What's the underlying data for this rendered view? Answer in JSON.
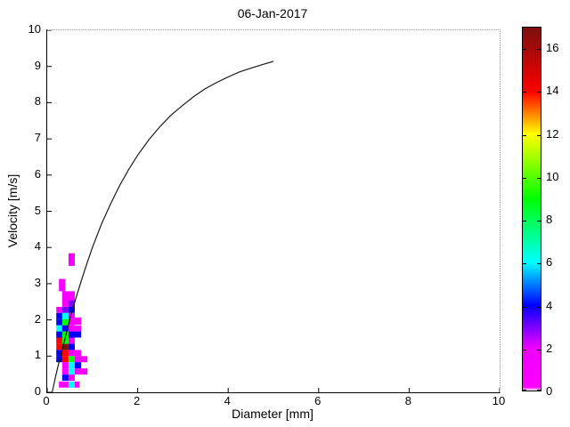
{
  "title": "06-Jan-2017",
  "chart_data": {
    "type": "heatmap",
    "title": "06-Jan-2017",
    "xlabel": "Diameter [mm]",
    "ylabel": "Velocity [m/s]",
    "xlim": [
      0,
      10
    ],
    "ylim": [
      0,
      10
    ],
    "xticks": [
      0,
      2,
      4,
      6,
      8,
      10
    ],
    "yticks": [
      0,
      1,
      2,
      3,
      4,
      5,
      6,
      7,
      8,
      9,
      10
    ],
    "grid": "dotted box edge on top and right only",
    "colorbar": {
      "min": 0,
      "max": 17,
      "ticks": [
        0,
        2,
        4,
        6,
        8,
        10,
        12,
        14,
        16
      ],
      "colormap_stops": [
        [
          0,
          "#ffffff"
        ],
        [
          0.15,
          "#ff00ff"
        ],
        [
          2,
          "#ee00ff"
        ],
        [
          4,
          "#0000ff"
        ],
        [
          6,
          "#00ffff"
        ],
        [
          9,
          "#00ff00"
        ],
        [
          12,
          "#ffff00"
        ],
        [
          14,
          "#ff0000"
        ],
        [
          17,
          "#7a0f0f"
        ]
      ]
    },
    "cell_size": {
      "w": 0.14,
      "h": 0.17
    },
    "cells_format": "[diameter_mm, velocity_ms, count, optional_w, optional_h]",
    "cells": [
      [
        0.47,
        3.49,
        1,
        0.14,
        0.35
      ],
      [
        0.26,
        2.79,
        1,
        0.14,
        0.34
      ],
      [
        0.33,
        2.46,
        1,
        0.28,
        0.33
      ],
      [
        0.33,
        2.36,
        1
      ],
      [
        0.47,
        2.36,
        3
      ],
      [
        0.2,
        2.19,
        1
      ],
      [
        0.33,
        2.19,
        3
      ],
      [
        0.47,
        2.19,
        4
      ],
      [
        0.2,
        2.02,
        4
      ],
      [
        0.33,
        2.02,
        6
      ],
      [
        0.47,
        2.02,
        1
      ],
      [
        0.61,
        1.87,
        1,
        0.14,
        0.2
      ],
      [
        0.2,
        1.85,
        4
      ],
      [
        0.33,
        1.85,
        9
      ],
      [
        0.47,
        1.85,
        1
      ],
      [
        0.2,
        1.68,
        6
      ],
      [
        0.33,
        1.68,
        4
      ],
      [
        0.47,
        1.68,
        1,
        0.28
      ],
      [
        0.2,
        1.51,
        4
      ],
      [
        0.33,
        1.51,
        9
      ],
      [
        0.47,
        1.51,
        4
      ],
      [
        0.61,
        1.51,
        4
      ],
      [
        0.2,
        1.34,
        14
      ],
      [
        0.33,
        1.34,
        9
      ],
      [
        0.47,
        1.34,
        1
      ],
      [
        0.2,
        1.17,
        14
      ],
      [
        0.33,
        1.17,
        17
      ],
      [
        0.47,
        1.17,
        4
      ],
      [
        0.2,
        1.0,
        4
      ],
      [
        0.33,
        1.0,
        14
      ],
      [
        0.47,
        1.0,
        1
      ],
      [
        0.61,
        1.0,
        1
      ],
      [
        0.2,
        0.83,
        4
      ],
      [
        0.33,
        0.83,
        14
      ],
      [
        0.47,
        0.83,
        9
      ],
      [
        0.61,
        0.83,
        1,
        0.28
      ],
      [
        0.33,
        0.66,
        1
      ],
      [
        0.47,
        0.66,
        6
      ],
      [
        0.61,
        0.66,
        4
      ],
      [
        0.33,
        0.49,
        1
      ],
      [
        0.47,
        0.49,
        6
      ],
      [
        0.61,
        0.49,
        1
      ],
      [
        0.75,
        0.49,
        1
      ],
      [
        0.33,
        0.32,
        4
      ],
      [
        0.47,
        0.32,
        1
      ],
      [
        0.26,
        0.13,
        1,
        0.45
      ],
      [
        0.47,
        0.13,
        6
      ]
    ],
    "curve": {
      "name": "terminal velocity curve",
      "points": [
        [
          0.11,
          0.0
        ],
        [
          0.2,
          0.52
        ],
        [
          0.3,
          1.03
        ],
        [
          0.4,
          1.51
        ],
        [
          0.5,
          2.02
        ],
        [
          0.6,
          2.46
        ],
        [
          0.7,
          2.87
        ],
        [
          0.8,
          3.26
        ],
        [
          0.9,
          3.64
        ],
        [
          1.0,
          4.0
        ],
        [
          1.2,
          4.65
        ],
        [
          1.4,
          5.2
        ],
        [
          1.6,
          5.71
        ],
        [
          1.8,
          6.15
        ],
        [
          2.0,
          6.55
        ],
        [
          2.25,
          6.98
        ],
        [
          2.5,
          7.35
        ],
        [
          2.75,
          7.67
        ],
        [
          3.0,
          7.93
        ],
        [
          3.25,
          8.18
        ],
        [
          3.5,
          8.39
        ],
        [
          3.75,
          8.56
        ],
        [
          4.0,
          8.71
        ],
        [
          4.25,
          8.85
        ],
        [
          4.5,
          8.95
        ],
        [
          4.75,
          9.05
        ],
        [
          5.0,
          9.14
        ]
      ]
    }
  }
}
